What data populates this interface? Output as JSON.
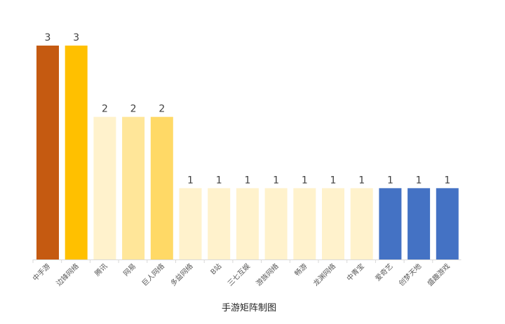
{
  "chart_data": {
    "type": "bar",
    "title": "",
    "xlabel": "手游矩阵制图",
    "ylabel": "",
    "ylim": [
      0,
      3
    ],
    "grid": false,
    "categories": [
      "中手游",
      "边锋网络",
      "腾讯",
      "网易",
      "巨人网络",
      "多益网络",
      "B站",
      "三七互娱",
      "游族网络",
      "畅游",
      "龙渊网络",
      "中青宝",
      "爱奇艺",
      "创梦天地",
      "盛趣游戏"
    ],
    "values": [
      3,
      3,
      2,
      2,
      2,
      1,
      1,
      1,
      1,
      1,
      1,
      1,
      1,
      1,
      1
    ],
    "colors": [
      "#C55A11",
      "#FFC000",
      "#FFF2CC",
      "#FFE699",
      "#FFD966",
      "#FFF2CC",
      "#FFF2CC",
      "#FFF2CC",
      "#FFF2CC",
      "#FFF2CC",
      "#FFF2CC",
      "#FFF2CC",
      "#4472C4",
      "#4472C4",
      "#4472C4"
    ]
  }
}
